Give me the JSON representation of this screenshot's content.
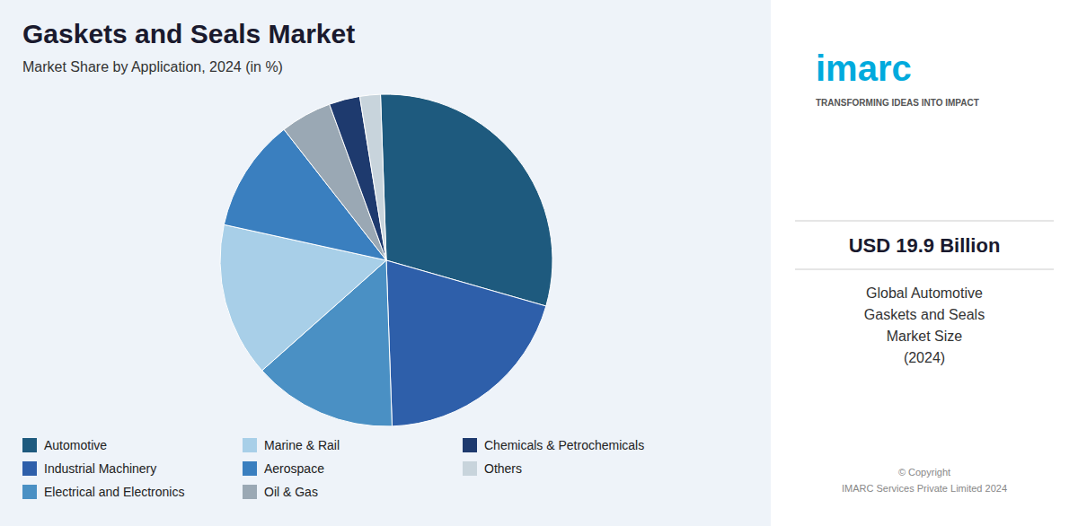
{
  "chart_data": {
    "type": "pie",
    "title": "Gaskets and Seals Market",
    "subtitle": "Market Share by Application, 2024 (in %)",
    "categories": [
      "Automotive",
      "Industrial Machinery",
      "Electrical and Electronics",
      "Marine & Rail",
      "Aerospace",
      "Oil & Gas",
      "Chemicals & Petrochemicals",
      "Others"
    ],
    "values": [
      30,
      20,
      14,
      15,
      11,
      5,
      3,
      2
    ],
    "colors": [
      "#1e5a7e",
      "#2e5faa",
      "#4a90c4",
      "#a8cfe8",
      "#3a7fbf",
      "#9aa8b4",
      "#1e3a6e",
      "#c8d4dc"
    ],
    "legend": "lower left",
    "annotations": [
      "imarc",
      "TRANSFORMING IDEAS INTO IMPACT",
      "USD 19.9 Billion",
      "Global Automotive\nGaskets and Seals\nMarket Size\n(2024)",
      "© Copyright\nIMARC Services Private Limited 2024"
    ]
  }
}
